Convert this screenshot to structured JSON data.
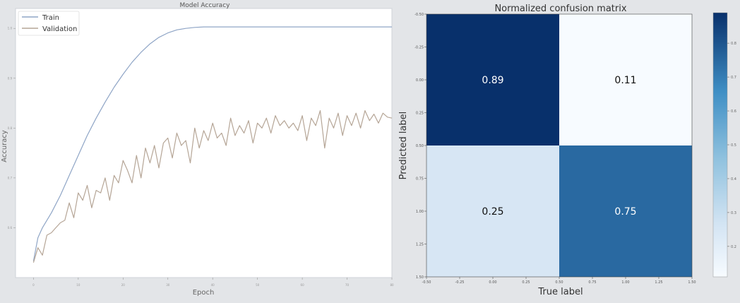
{
  "chart_data": [
    {
      "type": "line",
      "title": "Model Accuracy",
      "xlabel": "Epoch",
      "ylabel": "Accuracy",
      "xlim": [
        -4,
        80
      ],
      "ylim": [
        0.5,
        1.04
      ],
      "x_ticks": [
        "0",
        "10",
        "20",
        "30",
        "40",
        "50",
        "60",
        "70",
        "80"
      ],
      "y_ticks": [
        "0.6",
        "0.7",
        "0.8",
        "0.9",
        "1.0"
      ],
      "grid": false,
      "legend": "top-left",
      "series": [
        {
          "name": "Train",
          "color": "#8fa5c6",
          "x": [
            0,
            1,
            2,
            4,
            6,
            8,
            10,
            12,
            14,
            16,
            18,
            20,
            22,
            24,
            26,
            28,
            30,
            32,
            34,
            36,
            38,
            40,
            42,
            44,
            48,
            55,
            80
          ],
          "y": [
            0.533,
            0.58,
            0.6,
            0.63,
            0.665,
            0.705,
            0.745,
            0.785,
            0.82,
            0.852,
            0.882,
            0.908,
            0.932,
            0.952,
            0.969,
            0.982,
            0.991,
            0.997,
            1.0,
            1.002,
            1.003,
            1.003,
            1.003,
            1.003,
            1.003,
            1.003,
            1.003
          ]
        },
        {
          "name": "Validation",
          "color": "#b5a596",
          "x": [
            0,
            1,
            2,
            3,
            4,
            5,
            6,
            7,
            8,
            9,
            10,
            11,
            12,
            13,
            14,
            15,
            16,
            17,
            18,
            19,
            20,
            21,
            22,
            23,
            24,
            25,
            26,
            27,
            28,
            29,
            30,
            31,
            32,
            33,
            34,
            35,
            36,
            37,
            38,
            39,
            40,
            41,
            42,
            43,
            44,
            45,
            46,
            47,
            48,
            49,
            50,
            51,
            52,
            53,
            54,
            55,
            56,
            57,
            58,
            59,
            60,
            61,
            62,
            63,
            64,
            65,
            66,
            67,
            68,
            69,
            70,
            71,
            72,
            73,
            74,
            75,
            76,
            77,
            78,
            79,
            80
          ],
          "y": [
            0.53,
            0.56,
            0.545,
            0.585,
            0.59,
            0.6,
            0.61,
            0.615,
            0.65,
            0.62,
            0.67,
            0.655,
            0.685,
            0.64,
            0.675,
            0.67,
            0.7,
            0.655,
            0.705,
            0.69,
            0.735,
            0.715,
            0.69,
            0.745,
            0.7,
            0.76,
            0.73,
            0.765,
            0.72,
            0.77,
            0.78,
            0.74,
            0.79,
            0.765,
            0.775,
            0.73,
            0.8,
            0.76,
            0.795,
            0.775,
            0.81,
            0.78,
            0.79,
            0.765,
            0.82,
            0.785,
            0.805,
            0.79,
            0.815,
            0.77,
            0.81,
            0.8,
            0.82,
            0.79,
            0.825,
            0.805,
            0.815,
            0.8,
            0.81,
            0.795,
            0.825,
            0.775,
            0.82,
            0.805,
            0.835,
            0.76,
            0.82,
            0.8,
            0.83,
            0.785,
            0.825,
            0.805,
            0.83,
            0.8,
            0.835,
            0.815,
            0.828,
            0.81,
            0.83,
            0.822,
            0.82
          ]
        }
      ]
    },
    {
      "type": "heatmap",
      "title": "Normalized confusion matrix",
      "xlabel": "True label",
      "ylabel": "Predicted label",
      "x_ticks": [
        "-0.50",
        "-0.25",
        "0.00",
        "0.25",
        "0.50",
        "0.75",
        "1.00",
        "1.25",
        "1.50"
      ],
      "y_ticks": [
        "-0.50",
        "-0.25",
        "0.00",
        "0.25",
        "0.50",
        "0.75",
        "1.00",
        "1.25",
        "1.50"
      ],
      "cells": [
        [
          0.89,
          0.11
        ],
        [
          0.25,
          0.75
        ]
      ],
      "cell_labels": [
        [
          "0.89",
          "0.11"
        ],
        [
          "0.25",
          "0.75"
        ]
      ],
      "cmap": "Blues",
      "colorbar_ticks": [
        "0.2",
        "0.3",
        "0.4",
        "0.5",
        "0.6",
        "0.7",
        "0.8"
      ],
      "colorbar_range": [
        0.11,
        0.89
      ]
    }
  ]
}
